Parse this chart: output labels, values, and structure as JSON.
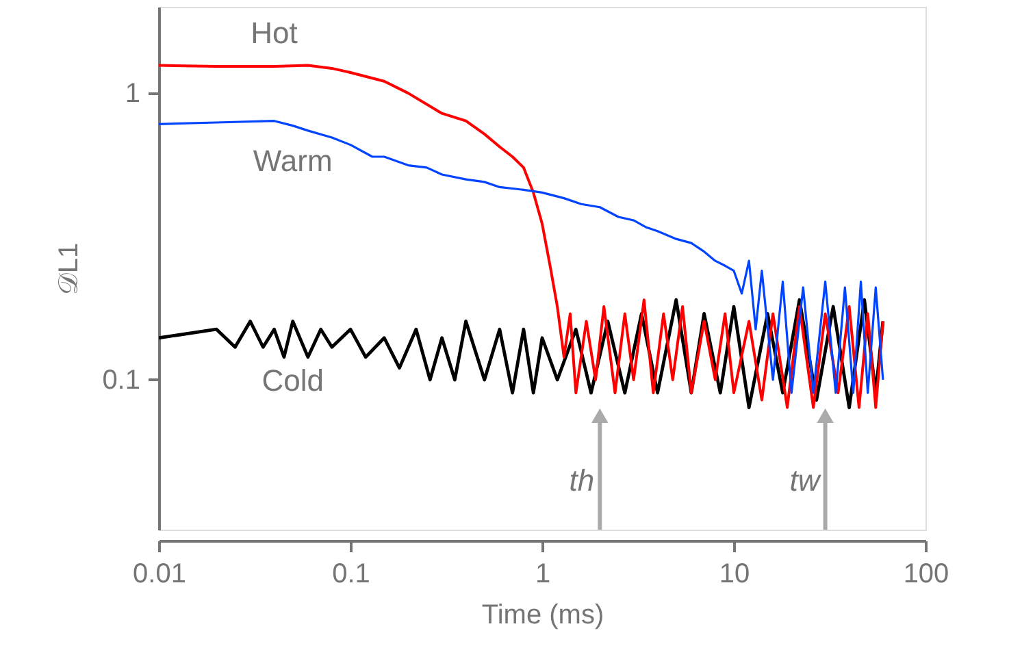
{
  "chart_data": {
    "type": "line",
    "xlabel": "Time (ms)",
    "ylabel": "𝒟L1",
    "log": "xy",
    "xlim": [
      0.01,
      100
    ],
    "ylim": [
      0.03,
      2
    ],
    "xticks": [
      0.01,
      0.1,
      1,
      10,
      100
    ],
    "yticks": [
      0.1,
      1
    ],
    "grid": false,
    "marker": "none",
    "line_style": "solid",
    "series": [
      {
        "name": "Cold",
        "color": "#000000",
        "x": [
          0.01,
          0.02,
          0.025,
          0.03,
          0.035,
          0.04,
          0.045,
          0.05,
          0.06,
          0.07,
          0.08,
          0.1,
          0.12,
          0.15,
          0.18,
          0.22,
          0.26,
          0.3,
          0.35,
          0.4,
          0.5,
          0.6,
          0.7,
          0.8,
          0.9,
          1.0,
          1.2,
          1.5,
          1.8,
          2.2,
          2.7,
          3.3,
          4,
          5,
          6,
          7,
          8.5,
          10,
          12,
          15,
          18,
          22,
          27,
          33,
          40,
          48,
          55,
          60
        ],
        "values": [
          0.14,
          0.15,
          0.13,
          0.16,
          0.13,
          0.15,
          0.12,
          0.16,
          0.12,
          0.15,
          0.13,
          0.15,
          0.12,
          0.14,
          0.11,
          0.15,
          0.1,
          0.14,
          0.1,
          0.16,
          0.1,
          0.15,
          0.09,
          0.15,
          0.09,
          0.14,
          0.1,
          0.15,
          0.09,
          0.16,
          0.09,
          0.17,
          0.09,
          0.19,
          0.09,
          0.17,
          0.09,
          0.18,
          0.08,
          0.17,
          0.09,
          0.19,
          0.085,
          0.18,
          0.08,
          0.19,
          0.09,
          0.16
        ]
      },
      {
        "name": "Hot",
        "color": "#ff0000",
        "x": [
          0.01,
          0.02,
          0.04,
          0.06,
          0.08,
          0.1,
          0.15,
          0.2,
          0.3,
          0.4,
          0.5,
          0.6,
          0.7,
          0.8,
          0.9,
          1.0,
          1.1,
          1.2,
          1.3,
          1.4,
          1.5,
          1.7,
          1.9,
          2.1,
          2.4,
          2.7,
          3,
          3.4,
          3.8,
          4.3,
          4.8,
          5.4,
          6,
          7,
          8,
          9,
          10,
          12,
          14,
          16,
          19,
          22,
          26,
          30,
          35,
          40,
          45,
          50,
          55,
          60
        ],
        "values": [
          1.25,
          1.24,
          1.24,
          1.25,
          1.22,
          1.18,
          1.1,
          1.0,
          0.85,
          0.8,
          0.72,
          0.65,
          0.6,
          0.55,
          0.45,
          0.35,
          0.25,
          0.18,
          0.12,
          0.17,
          0.09,
          0.16,
          0.1,
          0.18,
          0.09,
          0.17,
          0.1,
          0.19,
          0.09,
          0.17,
          0.1,
          0.18,
          0.09,
          0.16,
          0.1,
          0.17,
          0.09,
          0.16,
          0.085,
          0.17,
          0.08,
          0.18,
          0.08,
          0.17,
          0.09,
          0.18,
          0.08,
          0.17,
          0.08,
          0.16
        ]
      },
      {
        "name": "Warm",
        "color": "#0044ff",
        "x": [
          0.01,
          0.02,
          0.04,
          0.05,
          0.06,
          0.08,
          0.1,
          0.13,
          0.15,
          0.2,
          0.25,
          0.3,
          0.4,
          0.5,
          0.6,
          0.8,
          1.0,
          1.3,
          1.6,
          2,
          2.5,
          3,
          3.5,
          4,
          5,
          6,
          7,
          8,
          9,
          10,
          11,
          12,
          13,
          14,
          16,
          18,
          20,
          23,
          26,
          30,
          34,
          38,
          42,
          46,
          50,
          55,
          60
        ],
        "values": [
          0.78,
          0.79,
          0.8,
          0.77,
          0.74,
          0.7,
          0.66,
          0.6,
          0.6,
          0.56,
          0.55,
          0.52,
          0.5,
          0.49,
          0.47,
          0.46,
          0.45,
          0.43,
          0.41,
          0.4,
          0.37,
          0.36,
          0.34,
          0.33,
          0.31,
          0.3,
          0.28,
          0.26,
          0.25,
          0.24,
          0.2,
          0.26,
          0.15,
          0.24,
          0.1,
          0.22,
          0.09,
          0.21,
          0.09,
          0.22,
          0.09,
          0.21,
          0.09,
          0.22,
          0.09,
          0.21,
          0.1
        ]
      }
    ],
    "annotations": [
      {
        "text": "th",
        "x": 2,
        "y": 0.075
      },
      {
        "text": "tw",
        "x": 30,
        "y": 0.075
      }
    ]
  }
}
